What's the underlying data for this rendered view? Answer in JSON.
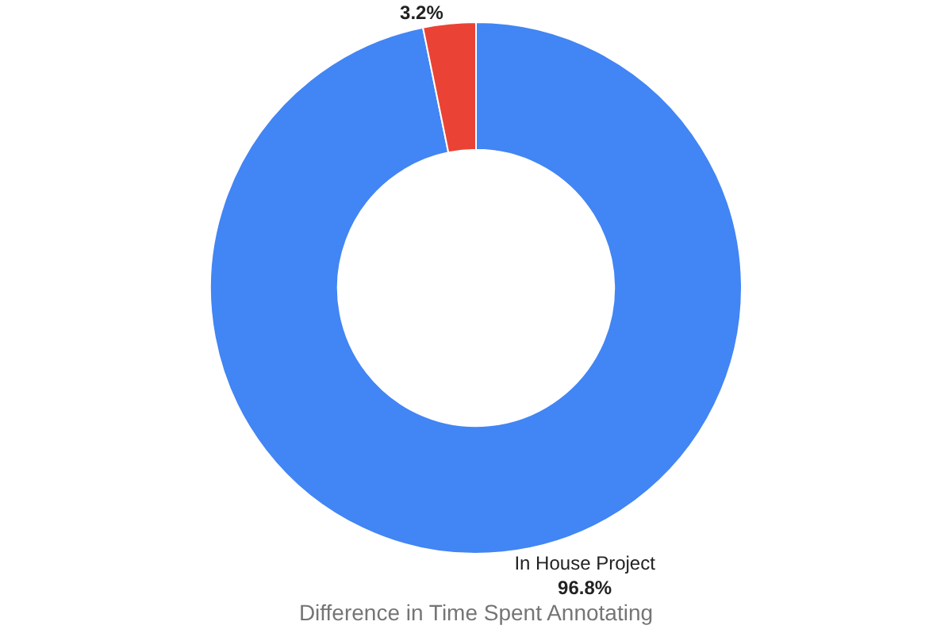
{
  "chart_data": {
    "type": "donut",
    "title": "Difference in Time Spent Annotating",
    "categories": [
      "In House Project",
      null
    ],
    "values": [
      96.8,
      3.2
    ],
    "colors": [
      "#4285f4",
      "#ea4335"
    ],
    "value_labels": [
      "96.8%",
      "3.2%"
    ],
    "legend": false
  }
}
